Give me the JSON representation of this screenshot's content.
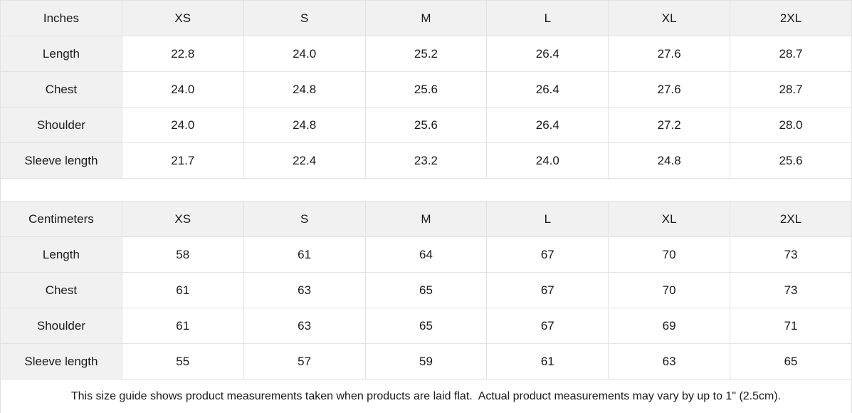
{
  "colors": {
    "header_bg": "#f1f1f1",
    "border": "#e2e2e2",
    "text": "#1a1a1a"
  },
  "tables": {
    "inches": {
      "unit_label": "Inches",
      "columns": [
        "XS",
        "S",
        "M",
        "L",
        "XL",
        "2XL"
      ],
      "rows": [
        {
          "label": "Length",
          "values": [
            "22.8",
            "24.0",
            "25.2",
            "26.4",
            "27.6",
            "28.7"
          ]
        },
        {
          "label": "Chest",
          "values": [
            "24.0",
            "24.8",
            "25.6",
            "26.4",
            "27.6",
            "28.7"
          ]
        },
        {
          "label": "Shoulder",
          "values": [
            "24.0",
            "24.8",
            "25.6",
            "26.4",
            "27.2",
            "28.0"
          ]
        },
        {
          "label": "Sleeve length",
          "values": [
            "21.7",
            "22.4",
            "23.2",
            "24.0",
            "24.8",
            "25.6"
          ]
        }
      ]
    },
    "centimeters": {
      "unit_label": "Centimeters",
      "columns": [
        "XS",
        "S",
        "M",
        "L",
        "XL",
        "2XL"
      ],
      "rows": [
        {
          "label": "Length",
          "values": [
            "58",
            "61",
            "64",
            "67",
            "70",
            "73"
          ]
        },
        {
          "label": "Chest",
          "values": [
            "61",
            "63",
            "65",
            "67",
            "70",
            "73"
          ]
        },
        {
          "label": "Shoulder",
          "values": [
            "61",
            "63",
            "65",
            "67",
            "69",
            "71"
          ]
        },
        {
          "label": "Sleeve length",
          "values": [
            "55",
            "57",
            "59",
            "61",
            "63",
            "65"
          ]
        }
      ]
    }
  },
  "footer": {
    "note": "This size guide shows product measurements taken when products are laid flat.  Actual product measurements may vary by up to 1\" (2.5cm)."
  }
}
